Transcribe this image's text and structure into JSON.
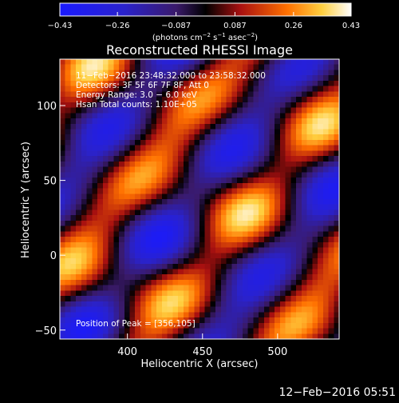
{
  "chart_data": {
    "type": "heatmap",
    "title": "Reconstructed RHESSI Image",
    "xlabel": "Heliocentric X (arcsec)",
    "ylabel": "Heliocentric Y (arcsec)",
    "xlim": [
      355,
      541
    ],
    "ylim": [
      -56,
      131
    ],
    "xticks": [
      {
        "v": 400,
        "label": "400"
      },
      {
        "v": 450,
        "label": "450"
      },
      {
        "v": 500,
        "label": "500"
      }
    ],
    "yticks": [
      {
        "v": -50,
        "label": "−50"
      },
      {
        "v": 0,
        "label": "0"
      },
      {
        "v": 50,
        "label": "50"
      },
      {
        "v": 100,
        "label": "100"
      }
    ],
    "colorbar": {
      "range": [
        -0.43,
        0.43
      ],
      "ticks": [
        {
          "v": -0.43,
          "label": "−0.43"
        },
        {
          "v": -0.26,
          "label": "−0.26"
        },
        {
          "v": -0.087,
          "label": "−0.087"
        },
        {
          "v": 0.087,
          "label": "0.087"
        },
        {
          "v": 0.26,
          "label": "0.26"
        },
        {
          "v": 0.43,
          "label": "0.43"
        }
      ],
      "units_pre": "(photons cm",
      "units_exp1": "−2",
      "units_mid1": " s",
      "units_exp2": "−1",
      "units_mid2": " asec",
      "units_exp3": "−2",
      "units_post": ")"
    },
    "annotations": [
      "11−Feb−2016 23:48:32.000 to 23:58:32.000",
      "Detectors: 3F 5F 6F 7F 8F, Att 0",
      "Energy Range: 3.0 − 6.0 keV",
      "Hsan    Total counts: 1.10E+05"
    ],
    "peak_text": "Position of Peak = [356,105]"
  },
  "footer": {
    "timestamp": "12−Feb−2016 05:51"
  }
}
